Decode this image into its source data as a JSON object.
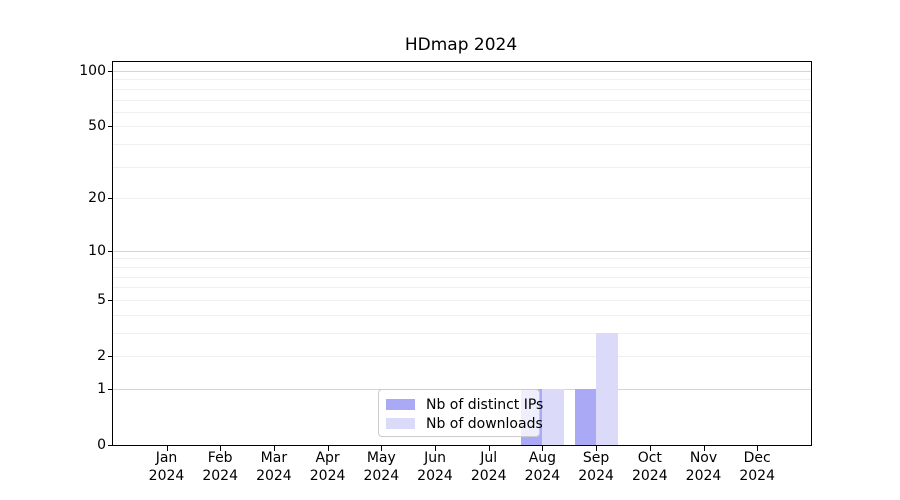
{
  "chart_data": {
    "type": "bar",
    "title": "HDmap 2024",
    "categories": [
      "Jan",
      "Feb",
      "Mar",
      "Apr",
      "May",
      "Jun",
      "Jul",
      "Aug",
      "Sep",
      "Oct",
      "Nov",
      "Dec"
    ],
    "x_tick_year": "2024",
    "series": [
      {
        "name": "Nb of distinct IPs",
        "color": "#a9a9f5",
        "values": [
          0,
          0,
          0,
          0,
          0,
          0,
          0,
          1,
          1,
          0,
          0,
          0
        ]
      },
      {
        "name": "Nb of downloads",
        "color": "#dbdbf9",
        "values": [
          0,
          0,
          0,
          0,
          0,
          0,
          0,
          1,
          3,
          0,
          0,
          0
        ]
      }
    ],
    "y_ticks": [
      0,
      1,
      2,
      5,
      10,
      20,
      50,
      100
    ],
    "y_scale": "log1p",
    "ylim": [
      0,
      104
    ],
    "grid": {
      "major": [
        1,
        10,
        100
      ],
      "minor": [
        2,
        3,
        4,
        5,
        6,
        7,
        8,
        9,
        20,
        30,
        40,
        50,
        60,
        70,
        80,
        90
      ]
    },
    "legend_position": "lower center",
    "axis_color": "#000000",
    "grid_major_color": "#d5d5d5",
    "grid_minor_color": "#efefef"
  }
}
